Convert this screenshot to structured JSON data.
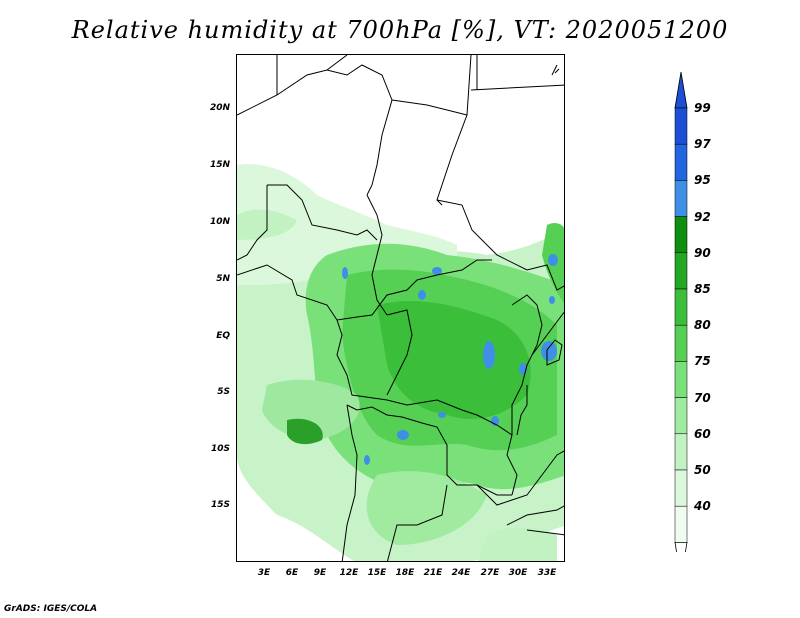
{
  "title": "Relative humidity at 700hPa [%], VT: 2020051200",
  "credit": "GrADS: IGES/COLA",
  "lat_ticks": [
    "20N",
    "15N",
    "10N",
    "5N",
    "EQ",
    "5S",
    "10S",
    "15S"
  ],
  "lon_ticks": [
    "3E",
    "6E",
    "9E",
    "12E",
    "15E",
    "18E",
    "21E",
    "24E",
    "27E",
    "30E",
    "33E"
  ],
  "colorbar": {
    "labels": [
      "99",
      "97",
      "95",
      "92",
      "90",
      "85",
      "80",
      "75",
      "70",
      "60",
      "50",
      "40"
    ],
    "colors": [
      "#1a4fd6",
      "#2166e0",
      "#3f8fe6",
      "#0f8f10",
      "#22a822",
      "#3bbf3b",
      "#55d055",
      "#7ae07a",
      "#a0eba0",
      "#c2f2c2",
      "#dcf8dc",
      "#effcef"
    ],
    "top_arrow_color": "#1a4fd6",
    "bottom_arrow_color": "#ffffff"
  },
  "map_colors": {
    "background": "#ffffff",
    "border_line": "#000000"
  }
}
